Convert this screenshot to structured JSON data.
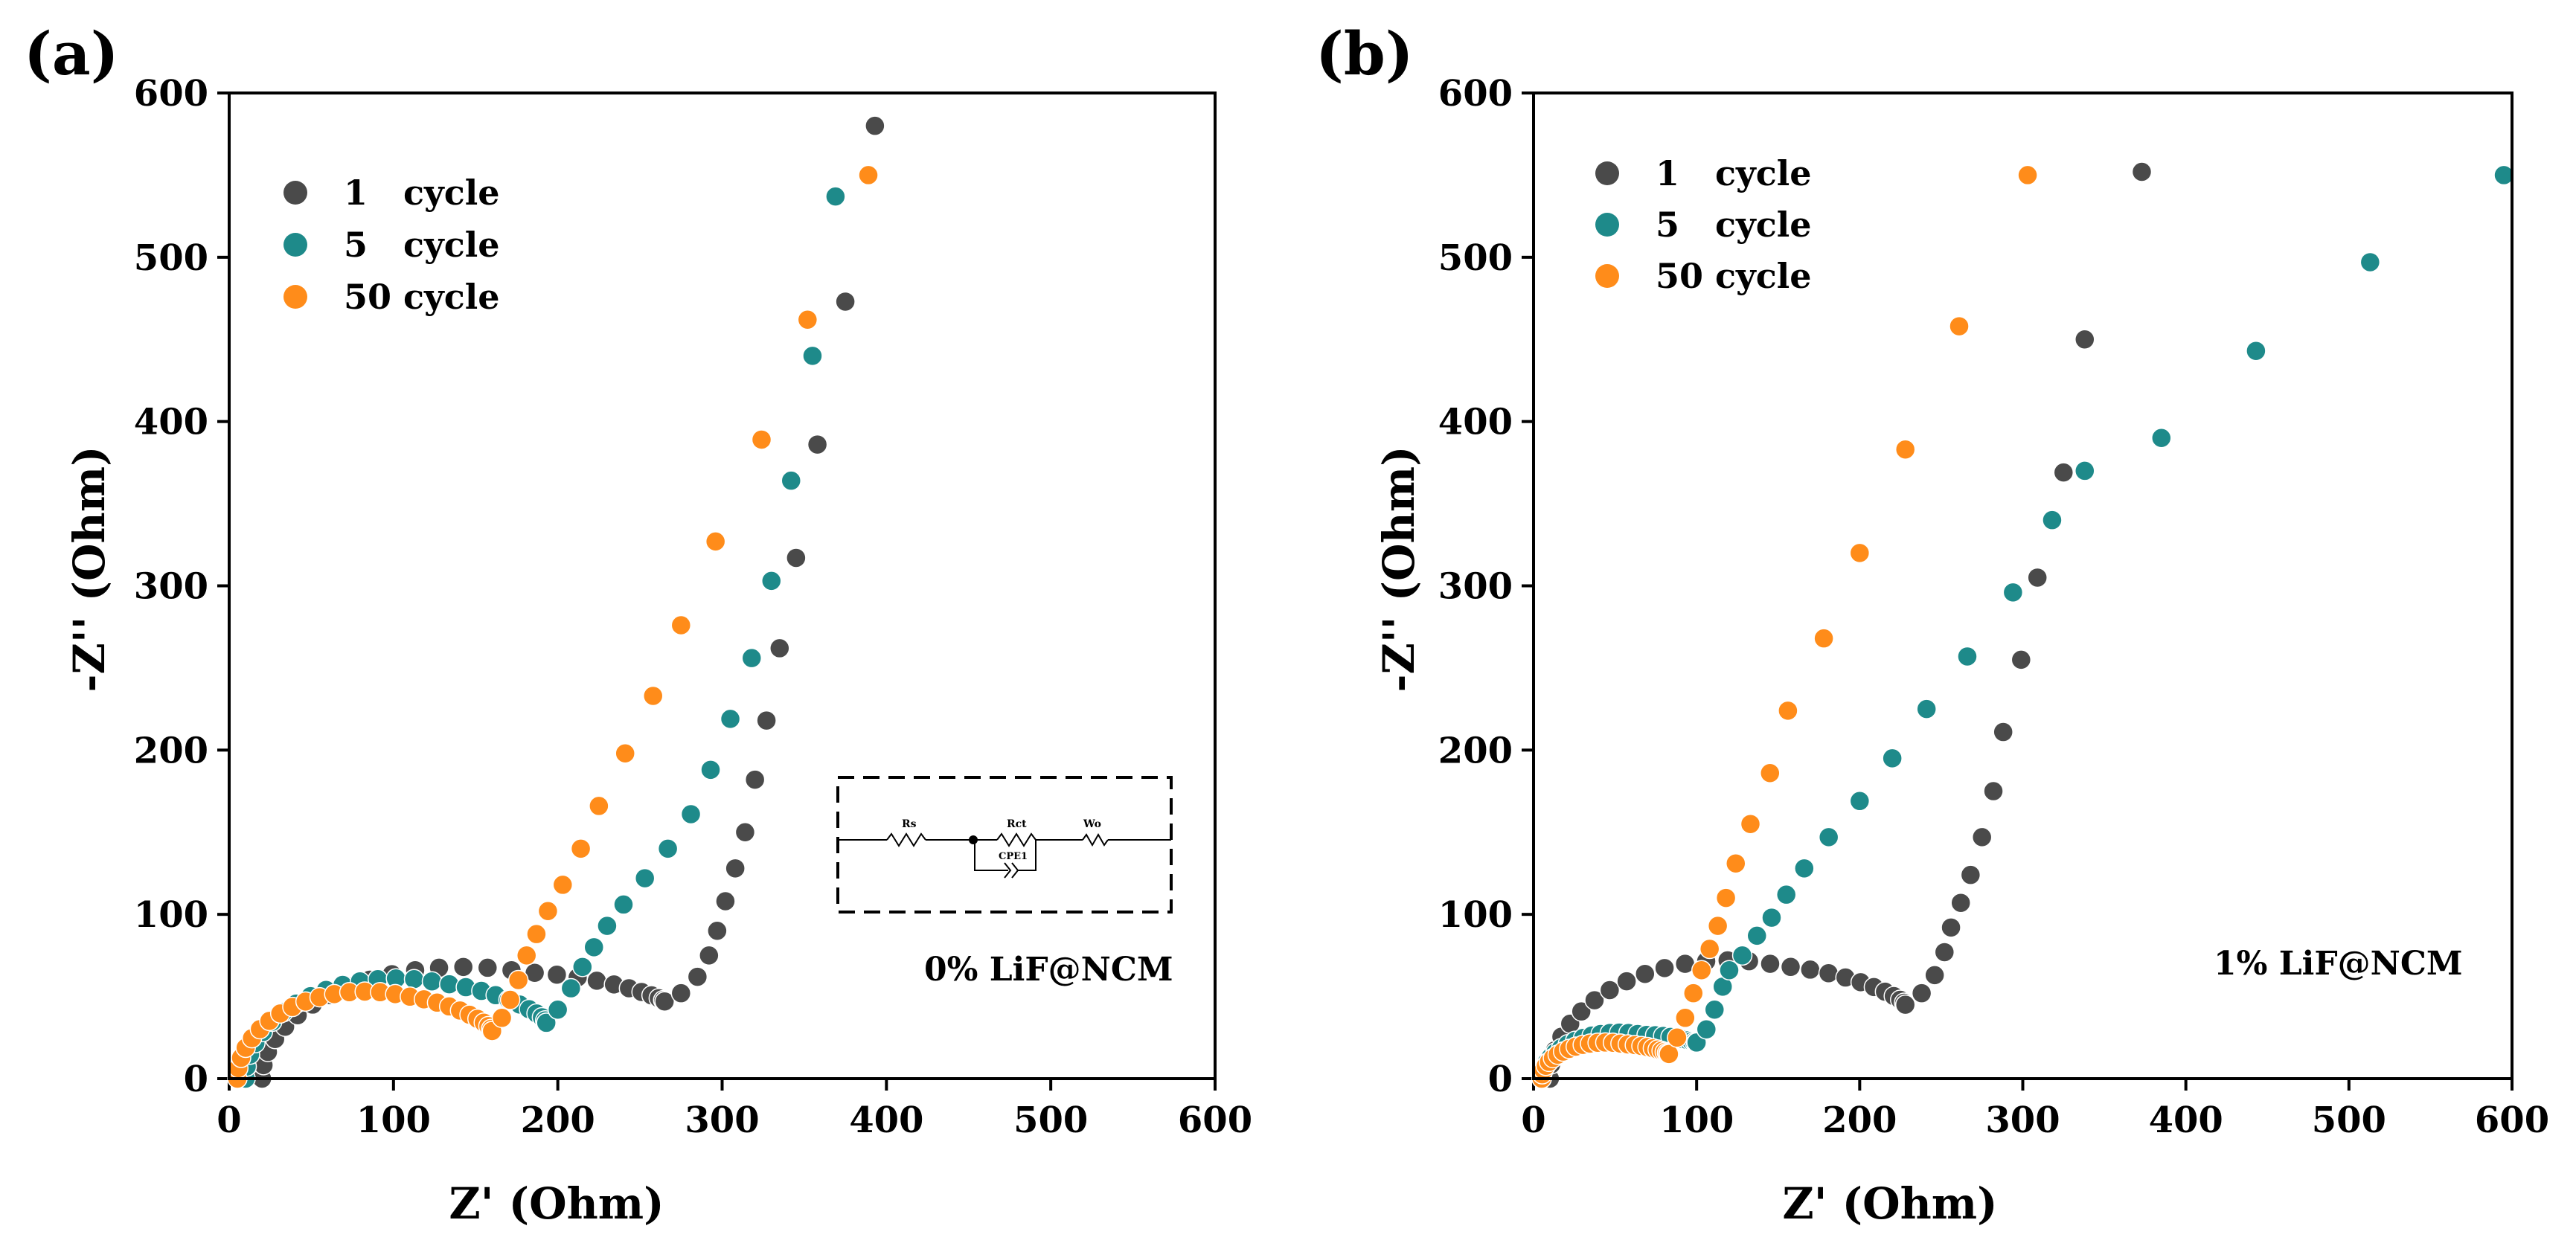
{
  "chart_data": [
    {
      "panel_label": "(a)",
      "type": "scatter",
      "title": "",
      "xlabel": "Z' (Ohm)",
      "ylabel": "-Z'' (Ohm)",
      "xlim": [
        0,
        600
      ],
      "ylim": [
        0,
        600
      ],
      "xticks": [
        0,
        100,
        200,
        300,
        400,
        500,
        600
      ],
      "yticks": [
        0,
        100,
        200,
        300,
        400,
        500,
        600
      ],
      "annotation": "0% LiF@NCM",
      "circuit_labels": {
        "rs": "Rs",
        "rct": "Rct",
        "wo": "Wo",
        "cpe": "CPE1"
      },
      "legend_position": "top-left",
      "series": [
        {
          "name": "1   cycle",
          "color": "#4a4a4a",
          "fit": {
            "x0": 20,
            "r": 120,
            "h": 68,
            "kneeX": 265,
            "kneeY": 47,
            "pts": [
              [
                265,
                47
              ],
              [
                275,
                52
              ],
              [
                285,
                62
              ],
              [
                292,
                75
              ],
              [
                297,
                90
              ],
              [
                302,
                108
              ],
              [
                308,
                128
              ],
              [
                314,
                150
              ],
              [
                320,
                182
              ],
              [
                327,
                218
              ],
              [
                335,
                262
              ],
              [
                345,
                317
              ],
              [
                358,
                386
              ],
              [
                375,
                473
              ],
              [
                393,
                580
              ]
            ]
          }
        },
        {
          "name": "5   cycle",
          "color": "#1e8a8a",
          "fit": {
            "x0": 10,
            "r": 95,
            "h": 61,
            "kneeX": 193,
            "kneeY": 34,
            "pts": [
              [
                193,
                34
              ],
              [
                200,
                42
              ],
              [
                208,
                55
              ],
              [
                215,
                68
              ],
              [
                222,
                80
              ],
              [
                230,
                93
              ],
              [
                240,
                106
              ],
              [
                253,
                122
              ],
              [
                267,
                140
              ],
              [
                281,
                161
              ],
              [
                293,
                188
              ],
              [
                305,
                219
              ],
              [
                318,
                256
              ],
              [
                330,
                303
              ],
              [
                342,
                364
              ],
              [
                355,
                440
              ],
              [
                369,
                537
              ]
            ]
          }
        },
        {
          "name": "50 cycle",
          "color": "#ff8c1a",
          "fit": {
            "x0": 5,
            "r": 80,
            "h": 53,
            "kneeX": 160,
            "kneeY": 29,
            "pts": [
              [
                160,
                29
              ],
              [
                166,
                37
              ],
              [
                171,
                48
              ],
              [
                176,
                60
              ],
              [
                181,
                75
              ],
              [
                187,
                88
              ],
              [
                194,
                102
              ],
              [
                203,
                118
              ],
              [
                214,
                140
              ],
              [
                225,
                166
              ],
              [
                241,
                198
              ],
              [
                258,
                233
              ],
              [
                275,
                276
              ],
              [
                296,
                327
              ],
              [
                324,
                389
              ],
              [
                352,
                462
              ],
              [
                389,
                550
              ]
            ]
          }
        }
      ]
    },
    {
      "panel_label": "(b)",
      "type": "scatter",
      "title": "",
      "xlabel": "Z' (Ohm)",
      "ylabel": "-Z'' (Ohm)",
      "xlim": [
        0,
        600
      ],
      "ylim": [
        0,
        600
      ],
      "xticks": [
        0,
        100,
        200,
        300,
        400,
        500,
        600
      ],
      "yticks": [
        0,
        100,
        200,
        300,
        400,
        500,
        600
      ],
      "annotation": "1% LiF@NCM",
      "legend_position": "top-left",
      "series": [
        {
          "name": "1   cycle",
          "color": "#4a4a4a",
          "fit": {
            "x0": 10,
            "r": 110,
            "h": 72,
            "kneeX": 228,
            "kneeY": 45,
            "pts": [
              [
                228,
                45
              ],
              [
                238,
                52
              ],
              [
                246,
                63
              ],
              [
                252,
                77
              ],
              [
                256,
                92
              ],
              [
                262,
                107
              ],
              [
                268,
                124
              ],
              [
                275,
                147
              ],
              [
                282,
                175
              ],
              [
                288,
                211
              ],
              [
                299,
                255
              ],
              [
                309,
                305
              ],
              [
                325,
                369
              ],
              [
                338,
                450
              ],
              [
                373,
                552
              ]
            ]
          }
        },
        {
          "name": "5   cycle",
          "color": "#1e8a8a",
          "fit": {
            "x0": 5,
            "r": 50,
            "h": 28,
            "kneeX": 100,
            "kneeY": 22,
            "pts": [
              [
                100,
                22
              ],
              [
                106,
                30
              ],
              [
                111,
                42
              ],
              [
                116,
                56
              ],
              [
                120,
                66
              ],
              [
                128,
                75
              ],
              [
                137,
                87
              ],
              [
                146,
                98
              ],
              [
                155,
                112
              ],
              [
                166,
                128
              ],
              [
                181,
                147
              ],
              [
                200,
                169
              ],
              [
                220,
                195
              ],
              [
                241,
                225
              ],
              [
                266,
                257
              ],
              [
                294,
                296
              ],
              [
                318,
                340
              ],
              [
                338,
                370
              ],
              [
                385,
                390
              ],
              [
                443,
                443
              ],
              [
                513,
                497
              ],
              [
                595,
                550
              ]
            ]
          }
        },
        {
          "name": "50 cycle",
          "color": "#ff8c1a",
          "fit": {
            "x0": 5,
            "r": 40,
            "h": 22,
            "kneeX": 83,
            "kneeY": 15,
            "pts": [
              [
                83,
                15
              ],
              [
                88,
                25
              ],
              [
                93,
                37
              ],
              [
                98,
                52
              ],
              [
                103,
                66
              ],
              [
                108,
                79
              ],
              [
                113,
                93
              ],
              [
                118,
                110
              ],
              [
                124,
                131
              ],
              [
                133,
                155
              ],
              [
                145,
                186
              ],
              [
                156,
                224
              ],
              [
                178,
                268
              ],
              [
                200,
                320
              ],
              [
                228,
                383
              ],
              [
                261,
                458
              ],
              [
                303,
                550
              ]
            ]
          }
        }
      ]
    }
  ]
}
